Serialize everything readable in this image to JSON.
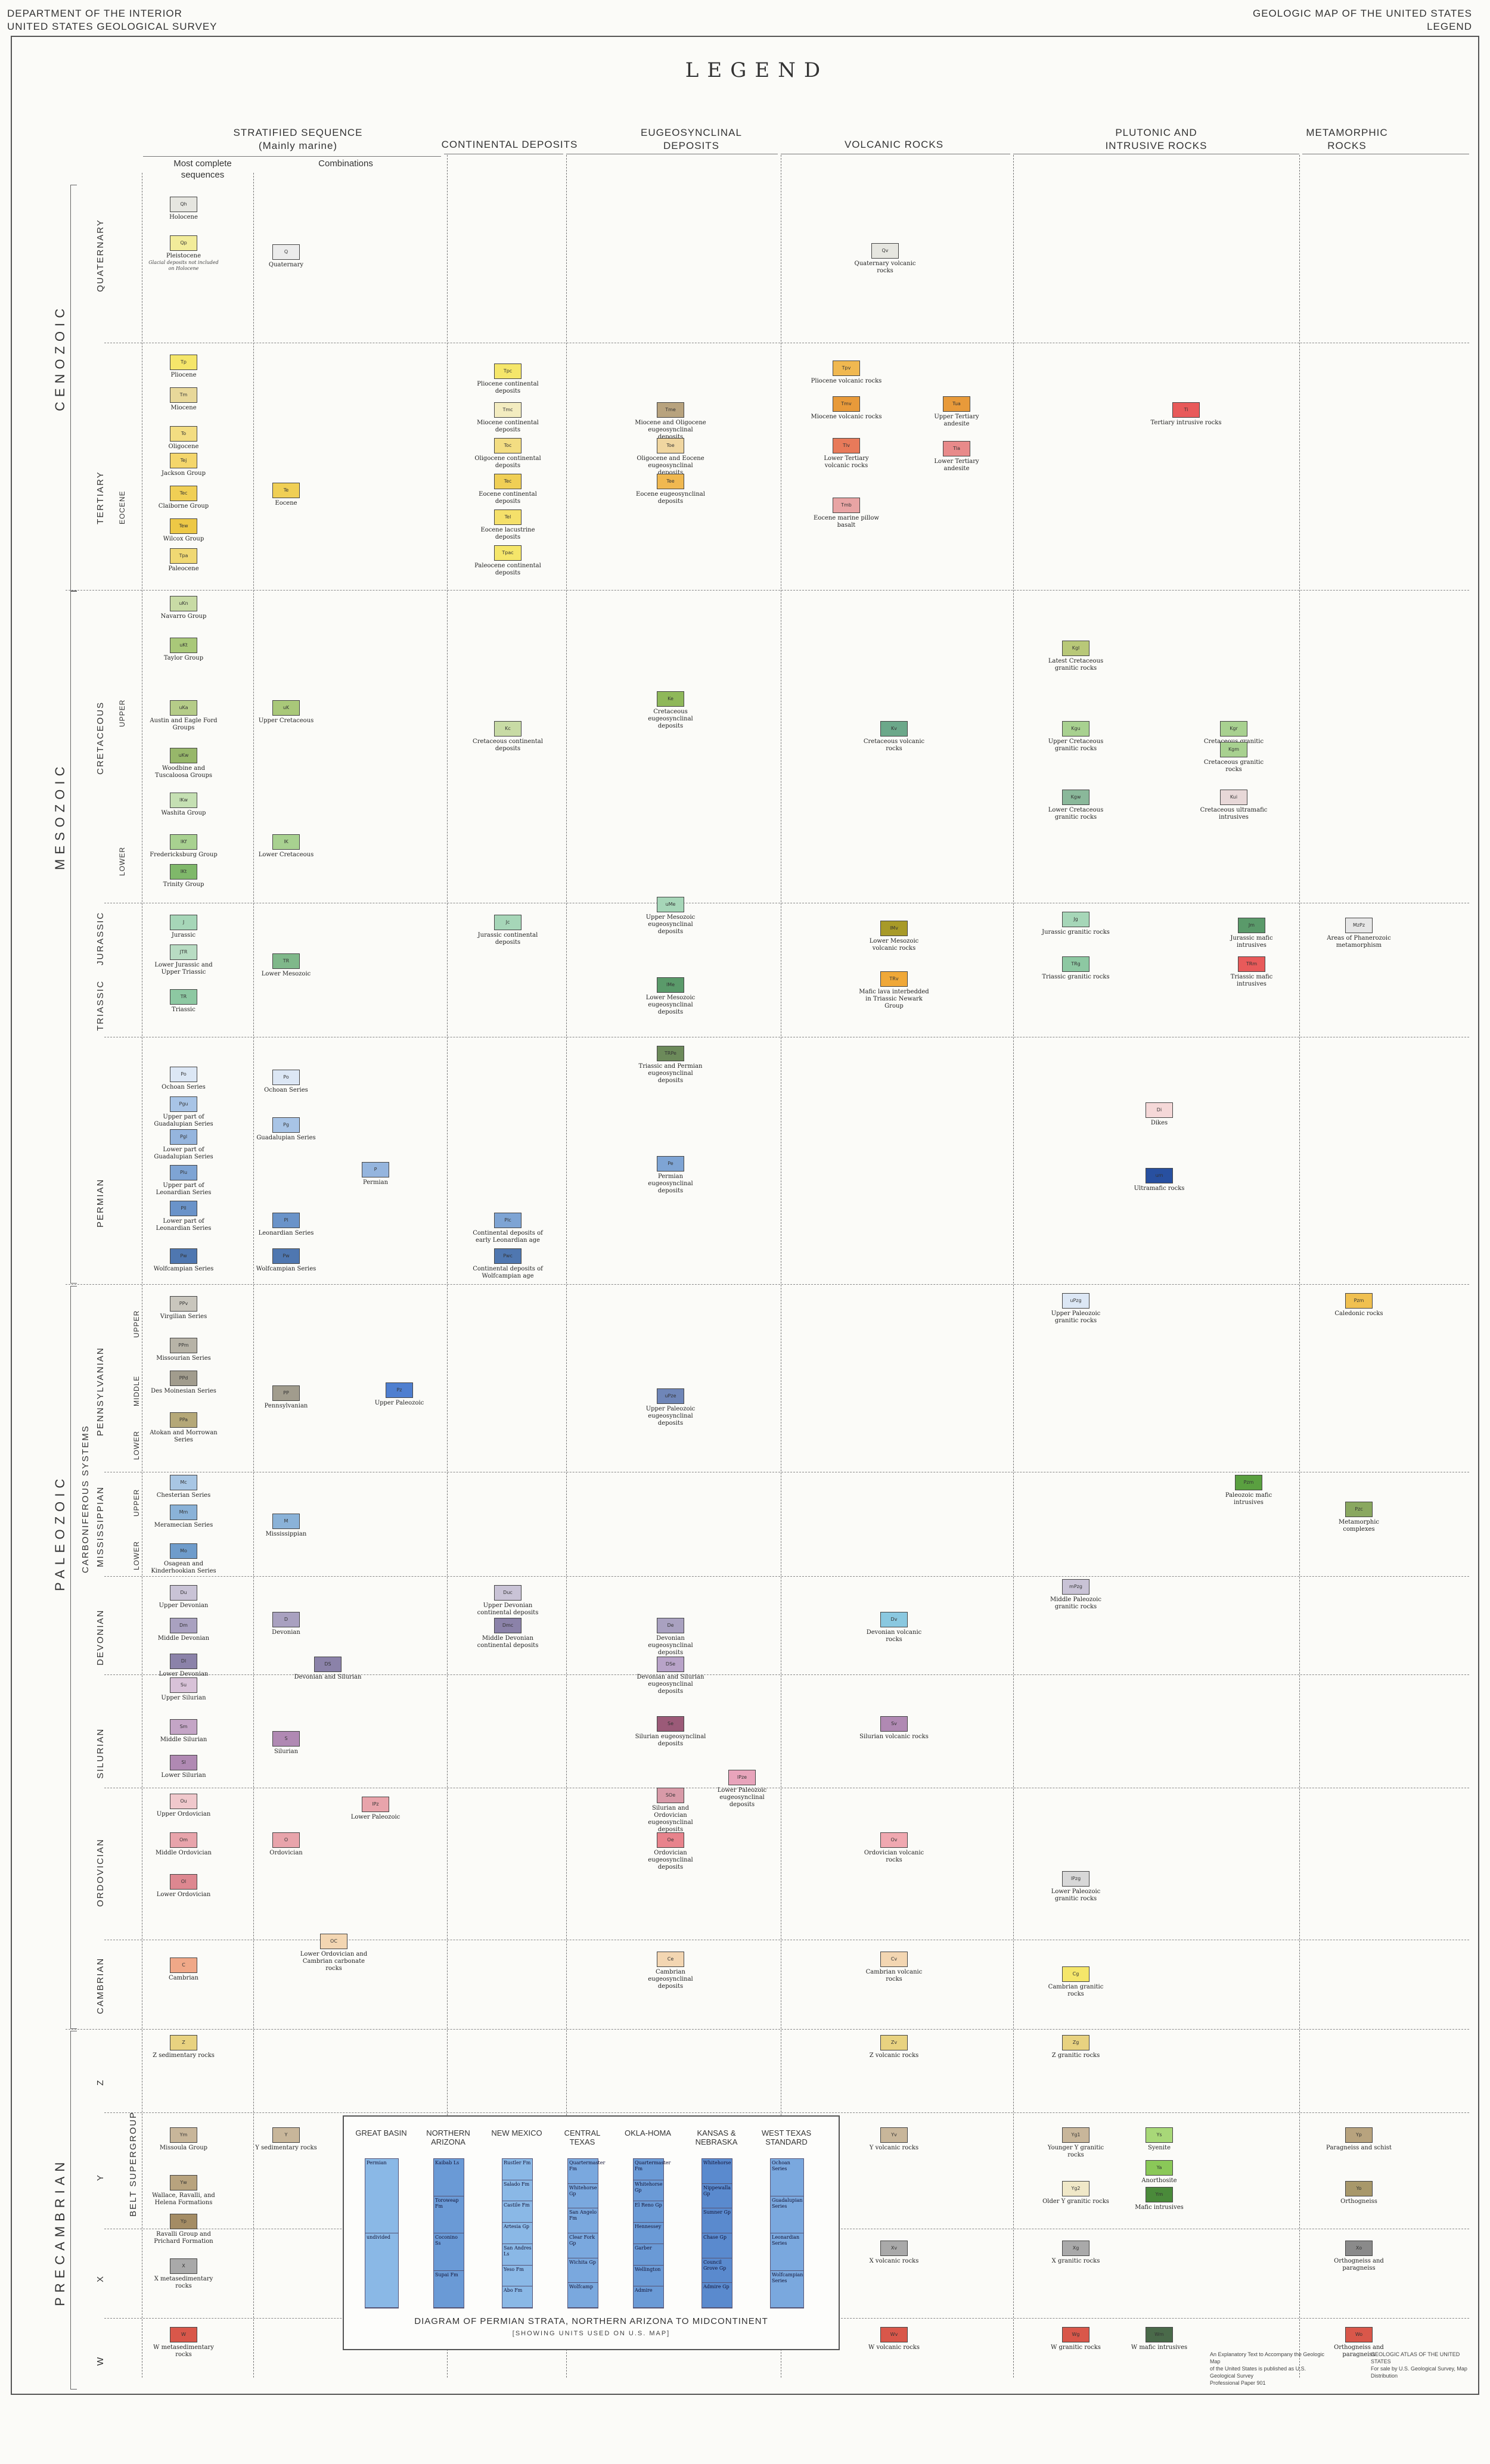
{
  "header": {
    "left_line1": "DEPARTMENT OF THE INTERIOR",
    "left_line2": "UNITED STATES GEOLOGICAL SURVEY",
    "right_line1": "GEOLOGIC MAP OF THE UNITED STATES",
    "right_line2": "LEGEND"
  },
  "title": "LEGEND",
  "columns": {
    "stratified_line1": "STRATIFIED SEQUENCE",
    "stratified_line2": "(Mainly marine)",
    "most_complete_line1": "Most complete",
    "most_complete_line2": "sequences",
    "combinations": "Combinations",
    "continental": "CONTINENTAL DEPOSITS",
    "eugeo_line1": "EUGEOSYNCLINAL",
    "eugeo_line2": "DEPOSITS",
    "volcanic": "VOLCANIC ROCKS",
    "plutonic_line1": "PLUTONIC AND",
    "plutonic_line2": "INTRUSIVE ROCKS",
    "metamorphic_line1": "METAMORPHIC",
    "metamorphic_line2": "ROCKS"
  },
  "eras": {
    "cenozoic": "CENOZOIC",
    "mesozoic": "MESOZOIC",
    "paleozoic": "PALEOZOIC",
    "precambrian": "PRECAMBRIAN"
  },
  "periods": {
    "quaternary": "QUATERNARY",
    "tertiary": "TERTIARY",
    "cretaceous": "CRETACEOUS",
    "jurassic": "JURASSIC",
    "triassic": "TRIASSIC",
    "permian": "PERMIAN",
    "pennsylvanian": "PENNSYLVANIAN",
    "mississippian": "MISSISSIPPIAN",
    "carboniferous": "CARBONIFEROUS SYSTEMS",
    "devonian": "DEVONIAN",
    "silurian": "SILURIAN",
    "ordovician": "ORDOVICIAN",
    "cambrian": "CAMBRIAN",
    "z": "Z",
    "y": "Y",
    "x": "X",
    "w": "W",
    "belt": "BELT SUPERGROUP"
  },
  "epochs": {
    "eocene": "EOCENE",
    "upper": "UPPER",
    "lower": "LOWER",
    "middle": "MIDDLE"
  },
  "units": [
    {
      "code": "Qh",
      "label": "Holocene",
      "color": "#e6e6e0"
    },
    {
      "code": "Qp",
      "label": "Pleistocene",
      "note": "Glacial deposits not included on Holocene",
      "color": "#f2ec9a"
    },
    {
      "code": "Tp",
      "label": "Pliocene",
      "color": "#f5e66a"
    },
    {
      "code": "Tm",
      "label": "Miocene",
      "color": "#e8d89a"
    },
    {
      "code": "To",
      "label": "Oligocene",
      "color": "#f3dd82"
    },
    {
      "code": "Tej",
      "label": "Jackson Group",
      "color": "#f4d66b"
    },
    {
      "code": "Tec",
      "label": "Claiborne Group",
      "color": "#f0cf55"
    },
    {
      "code": "Tew",
      "label": "Wilcox Group",
      "color": "#edc846"
    },
    {
      "code": "Tpa",
      "label": "Paleocene",
      "color": "#f0d873"
    },
    {
      "code": "uKn",
      "label": "Navarro Group",
      "color": "#c8dba5"
    },
    {
      "code": "uKt",
      "label": "Taylor Group",
      "color": "#a9c879"
    },
    {
      "code": "uKa",
      "label": "Austin and Eagle Ford Groups",
      "color": "#b5cc88"
    },
    {
      "code": "uKw",
      "label": "Woodbine and Tuscaloosa Groups",
      "color": "#97b76a"
    },
    {
      "code": "lKw",
      "label": "Washita Group",
      "color": "#c5e0b3"
    },
    {
      "code": "lKf",
      "label": "Fredericksburg Group",
      "color": "#a8d190"
    },
    {
      "code": "lKt",
      "label": "Trinity Group",
      "color": "#7fb86a"
    },
    {
      "code": "J",
      "label": "Jurassic",
      "color": "#a6d6b8"
    },
    {
      "code": "JTR",
      "label": "Lower Jurassic and Upper Triassic",
      "color": "#b8dcc3"
    },
    {
      "code": "TR",
      "label": "Triassic",
      "color": "#8dc8a2"
    },
    {
      "code": "Po",
      "label": "Ochoan Series",
      "color": "#dce7f5"
    },
    {
      "code": "Pgu",
      "label": "Upper part of Guadalupian Series",
      "color": "#a8c4e6"
    },
    {
      "code": "Pgl",
      "label": "Lower part of Guadalupian Series",
      "color": "#95b5de"
    },
    {
      "code": "Plu",
      "label": "Upper part of Leonardian Series",
      "color": "#7ea4d4"
    },
    {
      "code": "Pll",
      "label": "Lower part of Leonardian Series",
      "color": "#6a93c9"
    },
    {
      "code": "Pw",
      "label": "Wolfcampian Series",
      "color": "#4f77b0"
    },
    {
      "code": "PPv",
      "label": "Virgilian Series",
      "color": "#c9c6bd"
    },
    {
      "code": "PPm",
      "label": "Missourian Series",
      "color": "#b7b3a7"
    },
    {
      "code": "PPd",
      "label": "Des Moinesian Series",
      "color": "#a19c8d"
    },
    {
      "code": "PPa",
      "label": "Atokan and Morrowan Series",
      "color": "#b5a878"
    },
    {
      "code": "Mc",
      "label": "Chesterian Series",
      "color": "#a8c6e4"
    },
    {
      "code": "Mm",
      "label": "Meramecian Series",
      "color": "#8ab2d8"
    },
    {
      "code": "Mo",
      "label": "Osagean and Kinderhookian Series",
      "color": "#6f9ccb"
    },
    {
      "code": "Du",
      "label": "Upper Devonian",
      "color": "#c9c3d6"
    },
    {
      "code": "Dm",
      "label": "Middle Devonian",
      "color": "#a9a1c0"
    },
    {
      "code": "Dl",
      "label": "Lower Devonian",
      "color": "#8b82a9"
    },
    {
      "code": "Su",
      "label": "Upper Silurian",
      "color": "#d8c2d8"
    },
    {
      "code": "Sm",
      "label": "Middle Silurian",
      "color": "#c4a5c6"
    },
    {
      "code": "Sl",
      "label": "Lower Silurian",
      "color": "#b089b3"
    },
    {
      "code": "Ou",
      "label": "Upper Ordovician",
      "color": "#f0c8cc"
    },
    {
      "code": "Om",
      "label": "Middle Ordovician",
      "color": "#e8a4ab"
    },
    {
      "code": "Ol",
      "label": "Lower Ordovician",
      "color": "#dd8790"
    },
    {
      "code": "C",
      "label": "Cambrian",
      "color": "#f0a888"
    },
    {
      "code": "Z",
      "label": "Z sedimentary rocks",
      "color": "#e8d280"
    },
    {
      "code": "Ym",
      "label": "Missoula Group",
      "color": "#c8b69a"
    },
    {
      "code": "Yw",
      "label": "Wallace, Ravalli, and Helena Formations",
      "color": "#b8a37e"
    },
    {
      "code": "Yp",
      "label": "Ravalli Group and Prichard Formation",
      "color": "#a48c64"
    },
    {
      "code": "X",
      "label": "X metasedimentary rocks",
      "color": "#a9a9a9"
    },
    {
      "code": "W",
      "label": "W metasedimentary rocks",
      "color": "#d9574a"
    }
  ],
  "combination_units": [
    {
      "code": "Q",
      "label": "Quaternary",
      "color": "#ececec"
    },
    {
      "code": "Te",
      "label": "Eocene",
      "color": "#f0cf55"
    },
    {
      "code": "uK",
      "label": "Upper Cretaceous",
      "color": "#a9c879"
    },
    {
      "code": "lK",
      "label": "Lower Cretaceous",
      "color": "#a8d190"
    },
    {
      "code": "TR",
      "label": "Lower Mesozoic",
      "color": "#7fb88a"
    },
    {
      "code": "Po",
      "label": "Ochoan Series",
      "color": "#dce7f5"
    },
    {
      "code": "Pg",
      "label": "Guadalupian Series",
      "color": "#a8c4e6"
    },
    {
      "code": "P",
      "label": "Permian",
      "color": "#95b5de"
    },
    {
      "code": "Pl",
      "label": "Leonardian Series",
      "color": "#6a93c9"
    },
    {
      "code": "Pw",
      "label": "Wolfcampian Series",
      "color": "#4f77b0"
    },
    {
      "code": "PP",
      "label": "Pennsylvanian",
      "color": "#a19c8d"
    },
    {
      "code": "Pz",
      "label": "Upper Paleozoic",
      "color": "#4f7fd0"
    },
    {
      "code": "M",
      "label": "Mississippian",
      "color": "#8ab2d8"
    },
    {
      "code": "D",
      "label": "Devonian",
      "color": "#a9a1c0"
    },
    {
      "code": "DS",
      "label": "Devonian and Silurian",
      "color": "#8b82a9"
    },
    {
      "code": "S",
      "label": "Silurian",
      "color": "#b089b3"
    },
    {
      "code": "lPz",
      "label": "Lower Paleozoic",
      "color": "#e8a4ab"
    },
    {
      "code": "O",
      "label": "Ordovician",
      "color": "#e8a4ab"
    },
    {
      "code": "OC",
      "label": "Lower Ordovician and Cambrian carbonate rocks",
      "color": "#f3d6b2"
    },
    {
      "code": "Y",
      "label": "Y sedimentary rocks",
      "color": "#c8b69a"
    }
  ],
  "continental_units": [
    {
      "code": "Tpc",
      "label": "Pliocene continental deposits",
      "color": "#f5e66a"
    },
    {
      "code": "Tmc",
      "label": "Miocene continental deposits",
      "color": "#f3ecc0"
    },
    {
      "code": "Toc",
      "label": "Oligocene continental deposits",
      "color": "#f3dd82"
    },
    {
      "code": "Tec",
      "label": "Eocene continental deposits",
      "color": "#f0cf55"
    },
    {
      "code": "Tel",
      "label": "Eocene lacustrine deposits",
      "color": "#f5e06a"
    },
    {
      "code": "Tpac",
      "label": "Paleocene continental deposits",
      "color": "#f5e66a"
    },
    {
      "code": "Kc",
      "label": "Cretaceous continental deposits",
      "color": "#c8dba5"
    },
    {
      "code": "Jc",
      "label": "Jurassic continental deposits",
      "color": "#a6d6b8"
    },
    {
      "code": "Plc",
      "label": "Continental deposits of early Leonardian age",
      "color": "#7ea4d4"
    },
    {
      "code": "Pwc",
      "label": "Continental deposits of Wolfcampian age",
      "color": "#4f77b0"
    },
    {
      "code": "Duc",
      "label": "Upper Devonian continental deposits",
      "color": "#c9c3d6"
    },
    {
      "code": "Dmc",
      "label": "Middle Devonian continental deposits",
      "color": "#8b82a9"
    }
  ],
  "eugeo_units": [
    {
      "code": "Tme",
      "label": "Miocene and Oligocene eugeosynclinal deposits",
      "color": "#b8a37e"
    },
    {
      "code": "Toe",
      "label": "Oligocene and Eocene eugeosynclinal deposits",
      "color": "#f0d6a0"
    },
    {
      "code": "Tee",
      "label": "Eocene eugeosynclinal deposits",
      "color": "#f0b850"
    },
    {
      "code": "Ke",
      "label": "Cretaceous eugeosynclinal deposits",
      "color": "#8fb85a"
    },
    {
      "code": "uMe",
      "label": "Upper Mesozoic eugeosynclinal deposits",
      "color": "#a6d6b8"
    },
    {
      "code": "lMe",
      "label": "Lower Mesozoic eugeosynclinal deposits",
      "color": "#5a9a6a"
    },
    {
      "code": "TRPe",
      "label": "Triassic and Permian eugeosynclinal deposits",
      "color": "#6c8a5a"
    },
    {
      "code": "Pe",
      "label": "Permian eugeosynclinal deposits",
      "color": "#7ea4d4"
    },
    {
      "code": "uPze",
      "label": "Upper Paleozoic eugeosynclinal deposits",
      "color": "#6f86b8"
    },
    {
      "code": "De",
      "label": "Devonian eugeosynclinal deposits",
      "color": "#a9a1c0"
    },
    {
      "code": "DSe",
      "label": "Devonian and Silurian eugeosynclinal deposits",
      "color": "#b8a3c8"
    },
    {
      "code": "Se",
      "label": "Silurian eugeosynclinal deposits",
      "color": "#9b5a78"
    },
    {
      "code": "lPze",
      "label": "Lower Paleozoic eugeosynclinal deposits",
      "color": "#e8a4bb"
    },
    {
      "code": "SOe",
      "label": "Silurian and Ordovician eugeosynclinal deposits",
      "color": "#d89aa8"
    },
    {
      "code": "Oe",
      "label": "Ordovician eugeosynclinal deposits",
      "color": "#e8838c"
    },
    {
      "code": "Ce",
      "label": "Cambrian eugeosynclinal deposits",
      "color": "#f3d6b2"
    }
  ],
  "volcanic_units": [
    {
      "code": "Qv",
      "label": "Quaternary volcanic rocks",
      "color": "#e6e6e0"
    },
    {
      "code": "Tpv",
      "label": "Pliocene volcanic rocks",
      "color": "#f0b850"
    },
    {
      "code": "Tmv",
      "label": "Miocene volcanic rocks",
      "color": "#e89a3a"
    },
    {
      "code": "Tlv",
      "label": "Lower Tertiary volcanic rocks",
      "color": "#e87a5a"
    },
    {
      "code": "Tmb",
      "label": "Eocene marine pillow basalt",
      "color": "#e8a4a4"
    },
    {
      "code": "Tua",
      "label": "Upper Tertiary andesite",
      "color": "#e89a3a"
    },
    {
      "code": "Tla",
      "label": "Lower Tertiary andesite",
      "color": "#e88a8a"
    },
    {
      "code": "Kv",
      "label": "Cretaceous volcanic rocks",
      "color": "#6ca88a"
    },
    {
      "code": "lMv",
      "label": "Lower Mesozoic volcanic rocks",
      "color": "#a89a28"
    },
    {
      "code": "TRv",
      "label": "Mafic lava interbedded in Triassic Newark Group",
      "color": "#f0a838"
    },
    {
      "code": "Dv",
      "label": "Devonian volcanic rocks",
      "color": "#8ac8e0"
    },
    {
      "code": "Sv",
      "label": "Silurian volcanic rocks",
      "color": "#b089b3"
    },
    {
      "code": "Ov",
      "label": "Ordovician volcanic rocks",
      "color": "#f0a8b0"
    },
    {
      "code": "Cv",
      "label": "Cambrian volcanic rocks",
      "color": "#f3d6b2"
    },
    {
      "code": "Zv",
      "label": "Z volcanic rocks",
      "color": "#e8d280"
    },
    {
      "code": "Yv",
      "label": "Y volcanic rocks",
      "color": "#c8b69a"
    },
    {
      "code": "Xv",
      "label": "X volcanic rocks",
      "color": "#a9a9a9"
    },
    {
      "code": "Wv",
      "label": "W volcanic rocks",
      "color": "#d9574a"
    }
  ],
  "plutonic_units": [
    {
      "code": "Ti",
      "label": "Tertiary intrusive rocks",
      "color": "#e85a5a"
    },
    {
      "code": "Kgl",
      "label": "Latest Cretaceous granitic rocks",
      "color": "#b8c878"
    },
    {
      "code": "Kgu",
      "label": "Upper Cretaceous granitic rocks",
      "color": "#a8d190"
    },
    {
      "code": "Kgw",
      "label": "Lower Cretaceous granitic rocks",
      "color": "#8ab89a"
    },
    {
      "code": "Kgr",
      "label": "Cretaceous granitic rocks",
      "color": "#a8d190"
    },
    {
      "code": "Kui",
      "label": "Cretaceous ultramafic intrusives",
      "color": "#e8d8d8"
    },
    {
      "code": "Jg",
      "label": "Jurassic granitic rocks",
      "color": "#a6d6b8"
    },
    {
      "code": "TRg",
      "label": "Triassic granitic rocks",
      "color": "#8dc8a2"
    },
    {
      "code": "Jm",
      "label": "Jurassic mafic intrusives",
      "color": "#5a9a6a"
    },
    {
      "code": "TRm",
      "label": "Triassic mafic intrusives",
      "color": "#e85a5a"
    },
    {
      "code": "Di",
      "label": "Dikes",
      "color": "#f5d8d8"
    },
    {
      "code": "um",
      "label": "Ultramafic rocks",
      "color": "#2850a0"
    },
    {
      "code": "uPzg",
      "label": "Upper Paleozoic granitic rocks",
      "color": "#dce7f5"
    },
    {
      "code": "mPzg",
      "label": "Middle Paleozoic granitic rocks",
      "color": "#c9c3d6"
    },
    {
      "code": "lPzg",
      "label": "Lower Paleozoic granitic rocks",
      "color": "#d8d8d8"
    },
    {
      "code": "Pzm",
      "label": "Paleozoic mafic intrusives",
      "color": "#5aa040"
    },
    {
      "code": "Cg",
      "label": "Cambrian granitic rocks",
      "color": "#f5e66a"
    },
    {
      "code": "Zg",
      "label": "Z granitic rocks",
      "color": "#e8d280"
    },
    {
      "code": "Yg1",
      "label": "Younger Y granitic rocks",
      "color": "#c8b69a"
    },
    {
      "code": "Yg2",
      "label": "Older Y granitic rocks",
      "color": "#f0e8c8"
    },
    {
      "code": "Ys",
      "label": "Syenite",
      "color": "#a8d878"
    },
    {
      "code": "Ya",
      "label": "Anorthosite",
      "color": "#8ac858"
    },
    {
      "code": "Ym",
      "label": "Mafic intrusives",
      "color": "#4a8a3a"
    },
    {
      "code": "Xg",
      "label": "X granitic rocks",
      "color": "#a9a9a9"
    },
    {
      "code": "Wg",
      "label": "W granitic rocks",
      "color": "#d9574a"
    },
    {
      "code": "Wm",
      "label": "W mafic intrusives",
      "color": "#4a6a4a"
    }
  ],
  "metamorphic_units": [
    {
      "code": "Kgm",
      "label": "Cretaceous granitic rocks",
      "color": "#a8d190"
    },
    {
      "code": "MzPz",
      "label": "Areas of Phanerozoic metamorphism",
      "color": "#e6e6e6"
    },
    {
      "code": "Pzm",
      "label": "Caledonic rocks",
      "color": "#f0c050"
    },
    {
      "code": "Pzc",
      "label": "Metamorphic complexes",
      "color": "#8aa860"
    },
    {
      "code": "Yp",
      "label": "Paragneiss and schist",
      "color": "#b8a37e"
    },
    {
      "code": "Yo",
      "label": "Orthogneiss",
      "color": "#a8986a"
    },
    {
      "code": "Xo",
      "label": "Orthogneiss and paragneiss",
      "color": "#8a8a8a"
    },
    {
      "code": "Wo",
      "label": "Orthogneiss and paragneiss",
      "color": "#d9574a"
    }
  ],
  "diagram": {
    "title": "DIAGRAM OF PERMIAN STRATA, NORTHERN ARIZONA TO MIDCONTINENT",
    "subtitle": "[SHOWING UNITS USED ON U.S. MAP]",
    "columns": [
      "GREAT BASIN",
      "NORTHERN ARIZONA",
      "NEW MEXICO",
      "CENTRAL TEXAS",
      "OKLA-HOMA",
      "KANSAS & NEBRASKA",
      "WEST TEXAS STANDARD"
    ],
    "great_basin_cells": [
      "Permian",
      "undivided"
    ],
    "n_arizona_cells": [
      "Kaibab Ls",
      "Toroweap Fm",
      "Coconino Ss",
      "Supai Fm"
    ],
    "new_mexico_cells": [
      "Rustler Fm",
      "Salado Fm",
      "Castile Fm",
      "Artesia Gp",
      "San Andres Ls",
      "Yeso Fm",
      "Abo Fm"
    ],
    "central_texas_cells": [
      "Quartermaster Fm",
      "Whitehorse Gp",
      "San Angelo Fm",
      "Clear Fork Gp",
      "Wichita Gp",
      "Wolfcamp"
    ],
    "oklahoma_cells": [
      "Quartermaster Fm",
      "Whitehorse Gp",
      "El Reno Gp",
      "Hennessey",
      "Garber",
      "Wellington",
      "Admire"
    ],
    "kansas_cells": [
      "Whitehorse",
      "Nippewalla Gp",
      "Sumner Gp",
      "Chase Gp",
      "Council Grove Gp",
      "Admire Gp"
    ],
    "west_texas_cells": [
      "Ochoan Series",
      "Guadalupian Series",
      "Leonardian Series",
      "Wolfcampian Series"
    ]
  },
  "footer": {
    "ref_line1": "GEOLOGIC ATLAS OF THE UNITED STATES",
    "ref_line2": "For sale by U.S. Geological Survey, Map Distribution",
    "explain_line1": "An Explanatory Text to Accompany the Geologic Map",
    "explain_line2": "of the United States is published as U.S. Geological Survey",
    "explain_line3": "Professional Paper 901"
  }
}
